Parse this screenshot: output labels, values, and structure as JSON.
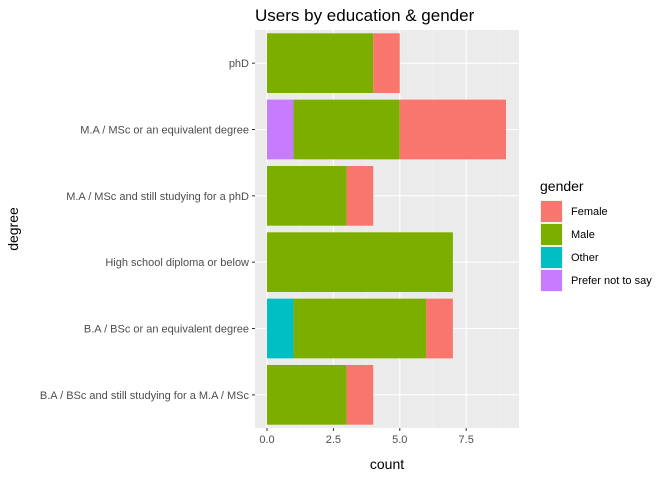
{
  "chart_data": {
    "type": "bar",
    "orientation": "horizontal",
    "stacked": true,
    "title": "Users by education & gender",
    "xlabel": "count",
    "ylabel": "degree",
    "xlim": [
      0,
      9.45
    ],
    "x_ticks": [
      0,
      2.5,
      5,
      7.5
    ],
    "x_tick_labels": [
      "0.0",
      "2.5",
      "5.0",
      "7.5"
    ],
    "grid": true,
    "legend_position": "right",
    "legend_title": "gender",
    "categories": [
      "phD",
      "M.A / MSc or an equivalent degree",
      "M.A / MSc and still studying for a phD",
      "High school diploma or below",
      "B.A / BSc or an equivalent degree",
      "B.A / BSc and still studying for a M.A / MSc"
    ],
    "series": [
      {
        "name": "Prefer not to say",
        "color": "#C77CFF",
        "values": [
          0,
          1,
          0,
          0,
          0,
          0
        ]
      },
      {
        "name": "Other",
        "color": "#00BFC4",
        "values": [
          0,
          0,
          0,
          0,
          1,
          0
        ]
      },
      {
        "name": "Male",
        "color": "#7CAE00",
        "values": [
          4,
          4,
          3,
          7,
          5,
          3
        ]
      },
      {
        "name": "Female",
        "color": "#F8766D",
        "values": [
          1,
          4,
          1,
          0,
          1,
          1
        ]
      }
    ],
    "legend_order": [
      "Female",
      "Male",
      "Other",
      "Prefer not to say"
    ]
  }
}
